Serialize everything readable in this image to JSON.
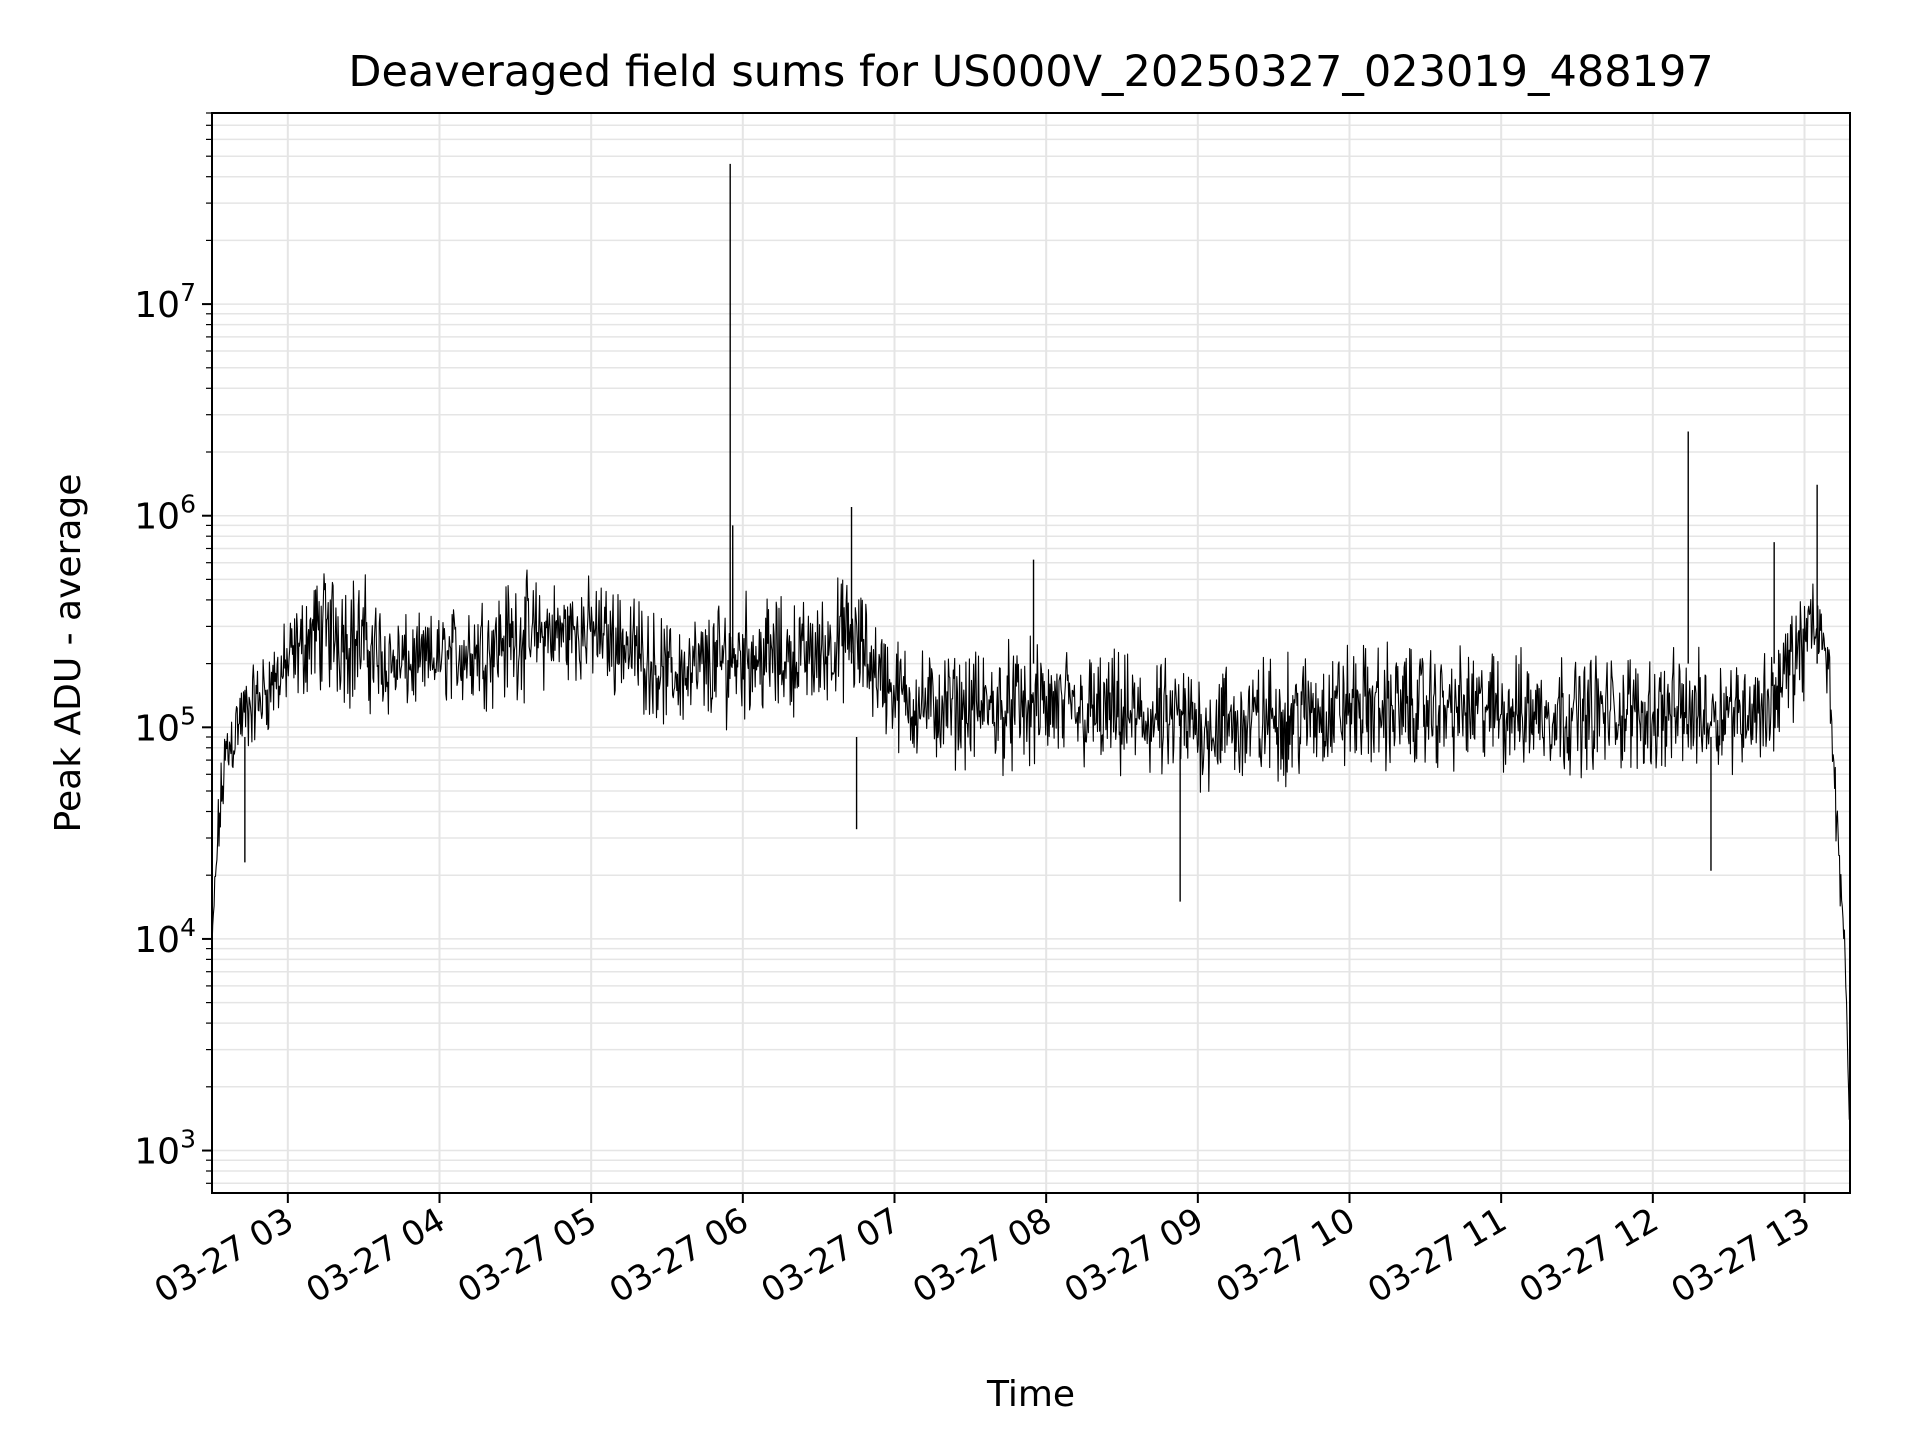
{
  "chart_data": {
    "type": "line",
    "title": "Deaveraged field sums for US000V_20250327_023019_488197",
    "xlabel": "Time",
    "ylabel": "Peak ADU - average",
    "yscale": "log",
    "ylim": [
      630,
      80000000
    ],
    "xlim": [
      "03-27 02:30",
      "03-27 13:18"
    ],
    "grid": true,
    "legend": "none",
    "line_color": "#000000",
    "grid_color": "#e5e5e5",
    "x_ticks": [
      "03-27 03",
      "03-27 04",
      "03-27 05",
      "03-27 06",
      "03-27 07",
      "03-27 08",
      "03-27 09",
      "03-27 10",
      "03-27 11",
      "03-27 12",
      "03-27 13"
    ],
    "y_ticks": [
      {
        "value": 1000,
        "base": "10",
        "exp": "3"
      },
      {
        "value": 10000,
        "base": "10",
        "exp": "4"
      },
      {
        "value": 100000,
        "base": "10",
        "exp": "5"
      },
      {
        "value": 1000000,
        "base": "10",
        "exp": "6"
      },
      {
        "value": 10000000,
        "base": "10",
        "exp": "7"
      }
    ],
    "series": [
      {
        "sampling": "approximate envelope; dense noise in plot drawn between the lower and upper bounds",
        "x": [
          "03-27 02:30",
          "03-27 02:32",
          "03-27 02:35",
          "03-27 02:40",
          "03-27 02:50",
          "03-27 03:00",
          "03-27 03:10",
          "03-27 03:20",
          "03-27 03:30",
          "03-27 03:40",
          "03-27 03:50",
          "03-27 04:00",
          "03-27 04:15",
          "03-27 04:30",
          "03-27 04:45",
          "03-27 05:00",
          "03-27 05:15",
          "03-27 05:30",
          "03-27 05:45",
          "03-27 06:00",
          "03-27 06:15",
          "03-27 06:30",
          "03-27 06:40",
          "03-27 06:50",
          "03-27 07:00",
          "03-27 07:15",
          "03-27 07:30",
          "03-27 07:45",
          "03-27 08:00",
          "03-27 08:15",
          "03-27 08:30",
          "03-27 08:45",
          "03-27 09:00",
          "03-27 09:15",
          "03-27 09:30",
          "03-27 09:45",
          "03-27 10:00",
          "03-27 10:15",
          "03-27 10:30",
          "03-27 10:45",
          "03-27 11:00",
          "03-27 11:15",
          "03-27 11:30",
          "03-27 11:45",
          "03-27 12:00",
          "03-27 12:15",
          "03-27 12:30",
          "03-27 12:45",
          "03-27 13:00",
          "03-27 13:05",
          "03-27 13:10",
          "03-27 13:13",
          "03-27 13:16",
          "03-27 13:18"
        ],
        "y_low": [
          8000,
          16000,
          40000,
          60000,
          80000,
          110000,
          130000,
          120000,
          100000,
          100000,
          110000,
          120000,
          110000,
          120000,
          140000,
          150000,
          120000,
          90000,
          90000,
          100000,
          100000,
          110000,
          120000,
          100000,
          70000,
          60000,
          60000,
          55000,
          55000,
          55000,
          50000,
          48000,
          45000,
          45000,
          48000,
          52000,
          55000,
          55000,
          55000,
          58000,
          55000,
          55000,
          55000,
          55000,
          55000,
          55000,
          58000,
          60000,
          120000,
          200000,
          100000,
          20000,
          8000,
          1000
        ],
        "y_high": [
          10000,
          45000,
          120000,
          180000,
          250000,
          350000,
          600000,
          700000,
          600000,
          400000,
          350000,
          380000,
          500000,
          600000,
          550000,
          550000,
          500000,
          350000,
          400000,
          500000,
          450000,
          450000,
          600000,
          450000,
          300000,
          250000,
          250000,
          280000,
          280000,
          250000,
          250000,
          230000,
          230000,
          230000,
          250000,
          260000,
          280000,
          280000,
          270000,
          260000,
          260000,
          250000,
          250000,
          250000,
          250000,
          250000,
          250000,
          250000,
          550000,
          500000,
          300000,
          50000,
          10000,
          1200
        ]
      }
    ],
    "spikes": [
      {
        "x": "03-27 02:43",
        "y": 23000,
        "direction": "down"
      },
      {
        "x": "03-27 05:55",
        "y": 46000000,
        "direction": "up"
      },
      {
        "x": "03-27 05:56",
        "y": 900000,
        "direction": "up"
      },
      {
        "x": "03-27 06:43",
        "y": 1100000,
        "direction": "up"
      },
      {
        "x": "03-27 06:45",
        "y": 33000,
        "direction": "down"
      },
      {
        "x": "03-27 07:55",
        "y": 620000,
        "direction": "up"
      },
      {
        "x": "03-27 08:53",
        "y": 15000,
        "direction": "down"
      },
      {
        "x": "03-27 12:14",
        "y": 2500000,
        "direction": "up"
      },
      {
        "x": "03-27 12:23",
        "y": 21000,
        "direction": "down"
      },
      {
        "x": "03-27 12:48",
        "y": 750000,
        "direction": "up"
      },
      {
        "x": "03-27 13:05",
        "y": 1400000,
        "direction": "up"
      }
    ]
  }
}
